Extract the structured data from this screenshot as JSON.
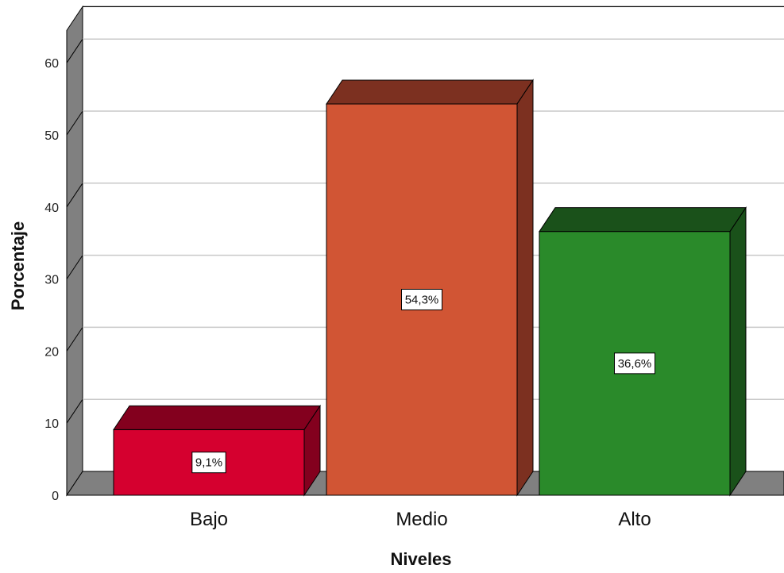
{
  "chart_data": {
    "type": "bar",
    "style": "3d",
    "title": "",
    "xlabel": "Niveles",
    "ylabel": "Porcentaje",
    "categories": [
      "Bajo",
      "Medio",
      "Alto"
    ],
    "values": [
      9.1,
      54.3,
      36.6
    ],
    "data_labels": [
      "9,1%",
      "54,3%",
      "36,6%"
    ],
    "y_ticks": [
      "0",
      "10",
      "20",
      "30",
      "40",
      "50",
      "60"
    ],
    "ylim": [
      0,
      60
    ],
    "grid": true,
    "legend": "none",
    "colors": {
      "bars": [
        "#d5002f",
        "#d15534",
        "#2a8a2a"
      ],
      "bar_tops": [
        "#83001e",
        "#7c3020",
        "#1a511a"
      ],
      "bar_sides": [
        "#83001e",
        "#7c3020",
        "#1a511a"
      ],
      "floor": "#808080",
      "back_wall": "#808080",
      "gridline": "#c9c9c9"
    }
  }
}
